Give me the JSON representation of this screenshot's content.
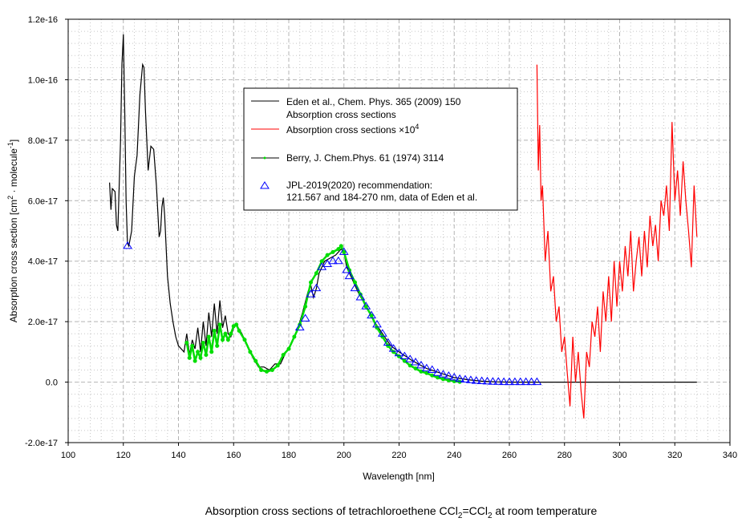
{
  "chart_data": {
    "type": "line",
    "caption": {
      "pre": "Absorption cross sections of tetrachloroethene CCl",
      "sub1": "2",
      "mid": "=CCl",
      "sub2": "2",
      "post": " at room temperature"
    },
    "xlabel": "Wavelength [nm]",
    "ylabel": {
      "pre": "Absorption cross section [cm",
      "sup1": "2",
      "mid": " · molecule",
      "sup2": "-1",
      "post": "]"
    },
    "xlim": [
      100,
      340
    ],
    "ylim": [
      -2,
      12
    ],
    "y_scale": 1e-17,
    "x_ticks": [
      100,
      120,
      140,
      160,
      180,
      200,
      220,
      240,
      260,
      280,
      300,
      320,
      340
    ],
    "x_tick_labels": [
      "100",
      "120",
      "140",
      "160",
      "180",
      "200",
      "220",
      "240",
      "260",
      "280",
      "300",
      "320",
      "340"
    ],
    "y_ticks": [
      -2,
      0,
      2,
      4,
      6,
      8,
      10,
      12
    ],
    "y_tick_labels": [
      "-2.0e-17",
      "0.0",
      "2.0e-17",
      "4.0e-17",
      "6.0e-17",
      "8.0e-17",
      "1.0e-16",
      "1.2e-16"
    ],
    "grid": true,
    "legend_placement": "top-center",
    "legend": [
      {
        "label": "Eden et al., Chem. Phys. 365 (2009) 150",
        "label2": "Absorption cross sections"
      },
      {
        "label": "Absorption cross sections ×10",
        "sup": "4"
      },
      {
        "label": "Berry, J. Chem.Phys. 61 (1974) 3114"
      },
      {
        "label": "JPL-2019(2020) recommendation:",
        "label2": "121.567 and 184-270 nm, data of Eden et al."
      }
    ],
    "series": [
      {
        "name": "Eden et al. 2009",
        "color": "#000000",
        "marker": "none",
        "x": [
          115,
          115.5,
          116,
          117,
          117.5,
          118,
          119,
          119.5,
          120,
          120.5,
          121,
          121.5,
          122,
          123,
          124,
          125,
          126,
          127,
          127.5,
          128,
          129,
          130,
          131,
          132,
          133,
          133.5,
          134,
          134.5,
          135,
          136,
          137,
          138,
          139,
          140,
          142,
          143,
          144,
          145,
          146,
          147,
          148,
          149,
          150,
          151,
          152,
          153,
          154,
          155,
          156,
          157,
          158,
          159,
          160,
          161,
          163,
          165,
          167,
          169,
          171,
          173,
          175,
          177,
          179,
          181,
          183,
          185,
          187,
          188,
          189,
          190,
          191,
          193,
          195,
          197,
          199,
          200,
          201,
          203,
          205,
          208,
          211,
          214,
          217,
          220,
          225,
          230,
          235,
          240,
          245,
          250,
          255,
          260,
          270,
          328
        ],
        "y": [
          6.6,
          5.7,
          6.4,
          6.3,
          5.2,
          5.0,
          8,
          10.5,
          11.5,
          9,
          6,
          4.6,
          4.5,
          5,
          6.8,
          7.5,
          9.5,
          10.5,
          10.4,
          9,
          7,
          7.8,
          7.7,
          6.5,
          4.8,
          5,
          5.8,
          6.1,
          5.5,
          3.5,
          2.6,
          2,
          1.5,
          1.2,
          1.0,
          1.6,
          0.9,
          1.4,
          1.1,
          1.8,
          1.0,
          2.0,
          1.2,
          2.3,
          1.5,
          2.6,
          1.6,
          2.7,
          1.8,
          2.2,
          1.6,
          1.5,
          1.8,
          1.9,
          1.6,
          1.2,
          0.8,
          0.5,
          0.5,
          0.4,
          0.6,
          0.6,
          1.0,
          1.3,
          1.7,
          2.3,
          3.0,
          3.2,
          2.8,
          3.1,
          3.6,
          4.0,
          4.1,
          4.2,
          4.4,
          4.3,
          3.8,
          3.4,
          3.0,
          2.5,
          2.0,
          1.6,
          1.2,
          1.0,
          0.7,
          0.45,
          0.3,
          0.15,
          0.08,
          0.03,
          0.01,
          0,
          0,
          0
        ]
      },
      {
        "name": "Absorption cross sections x10^4",
        "color": "#ff0000",
        "marker": "none",
        "x": [
          270,
          270.5,
          271,
          271.5,
          272,
          273,
          274,
          275,
          276,
          277,
          278,
          279,
          280,
          281,
          282,
          283,
          284,
          285,
          286,
          287,
          288,
          289,
          290,
          291,
          292,
          293,
          294,
          295,
          296,
          297,
          298,
          299,
          300,
          301,
          302,
          303,
          304,
          305,
          306,
          307,
          308,
          309,
          310,
          311,
          312,
          313,
          314,
          315,
          316,
          317,
          318,
          319,
          320,
          321,
          322,
          323,
          324,
          325,
          326,
          327,
          328
        ],
        "y": [
          10.5,
          7,
          8.5,
          6,
          6.5,
          4,
          5,
          3,
          3.5,
          2,
          2.5,
          1,
          1.5,
          0.3,
          -0.8,
          1.5,
          0,
          1,
          -0.3,
          -1.2,
          1,
          0.5,
          2,
          1.5,
          2.5,
          1,
          3,
          2,
          3.5,
          2,
          4,
          2.5,
          4,
          3,
          4.5,
          3.5,
          5,
          3,
          4,
          4.8,
          3.5,
          5,
          3.8,
          5.5,
          4.5,
          5.2,
          4,
          6,
          5.5,
          6.5,
          5,
          8.6,
          6,
          7,
          5.5,
          7.3,
          6,
          5,
          3.8,
          6.5,
          4.8
        ]
      },
      {
        "name": "Berry 1974",
        "color": "#00dd00",
        "marker": "dot",
        "x": [
          143,
          144,
          145,
          146,
          147,
          148,
          149,
          150,
          151,
          152,
          153,
          154,
          155,
          156,
          157,
          158,
          159,
          160,
          161,
          162,
          164,
          166,
          168,
          170,
          172,
          174,
          176,
          178,
          180,
          182,
          184,
          186,
          188,
          190,
          192,
          194,
          196,
          198,
          199,
          200,
          202,
          204,
          206,
          208,
          210,
          212,
          214,
          216,
          218,
          220,
          222,
          224,
          226,
          228,
          230,
          232,
          234,
          236,
          238,
          240,
          242
        ],
        "y": [
          1.3,
          0.8,
          1.2,
          0.7,
          1.0,
          0.8,
          1.3,
          0.9,
          1.5,
          1.0,
          1.7,
          1.2,
          1.9,
          1.4,
          1.6,
          1.4,
          1.6,
          1.85,
          1.9,
          1.7,
          1.4,
          1.0,
          0.7,
          0.4,
          0.35,
          0.4,
          0.55,
          0.9,
          1.1,
          1.5,
          1.9,
          2.5,
          3.3,
          3.6,
          4.0,
          4.2,
          4.3,
          4.4,
          4.5,
          4.3,
          3.7,
          3.3,
          2.9,
          2.5,
          2.2,
          1.8,
          1.5,
          1.2,
          1.0,
          0.85,
          0.7,
          0.55,
          0.45,
          0.35,
          0.3,
          0.22,
          0.15,
          0.1,
          0.06,
          0.03,
          0.01
        ]
      },
      {
        "name": "JPL-2019(2020)",
        "color": "#0000ff",
        "marker": "triangle",
        "x": [
          121.567,
          184,
          186,
          188,
          190,
          192,
          194,
          196,
          198,
          200,
          201,
          202,
          204,
          206,
          208,
          210,
          212,
          214,
          216,
          218,
          220,
          222,
          224,
          226,
          228,
          230,
          232,
          234,
          236,
          238,
          240,
          242,
          244,
          246,
          248,
          250,
          252,
          254,
          256,
          258,
          260,
          262,
          264,
          266,
          268,
          270
        ],
        "y": [
          4.5,
          1.8,
          2.1,
          2.9,
          3.1,
          3.8,
          3.9,
          4.0,
          4.0,
          4.3,
          3.7,
          3.5,
          3.1,
          2.8,
          2.5,
          2.2,
          1.9,
          1.6,
          1.3,
          1.1,
          0.95,
          0.85,
          0.75,
          0.65,
          0.55,
          0.45,
          0.4,
          0.3,
          0.25,
          0.2,
          0.15,
          0.1,
          0.08,
          0.06,
          0.04,
          0.03,
          0.02,
          0.01,
          0.01,
          0,
          0,
          0,
          0,
          0,
          0,
          0
        ]
      }
    ]
  }
}
